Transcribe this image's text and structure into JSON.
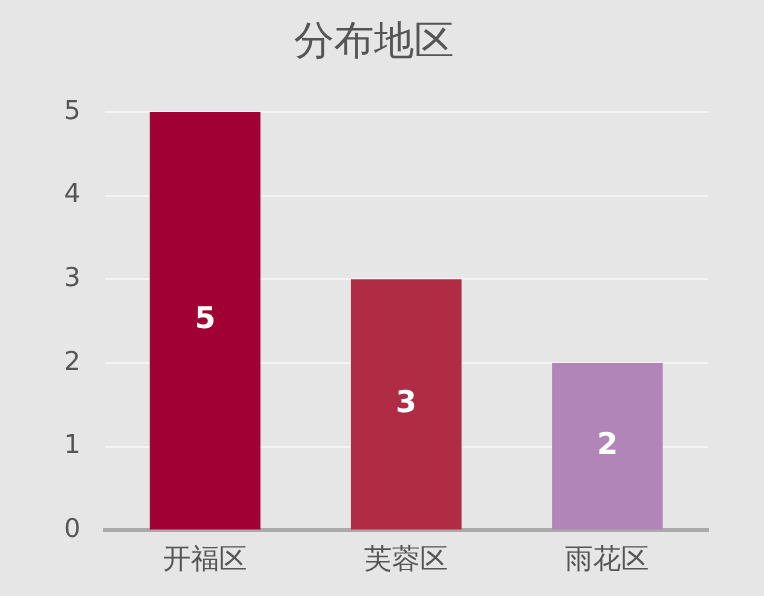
{
  "chart_data": {
    "type": "bar",
    "title": "分布地区",
    "categories": [
      "开福区",
      "芙蓉区",
      "雨花区"
    ],
    "values": [
      5,
      3,
      2
    ],
    "colors": [
      "#a00034",
      "#b02c44",
      "#b185b8"
    ],
    "ylim": [
      0,
      5
    ],
    "yticks": [
      0,
      1,
      2,
      3,
      4,
      5
    ],
    "grid": "y",
    "data_labels": true
  }
}
